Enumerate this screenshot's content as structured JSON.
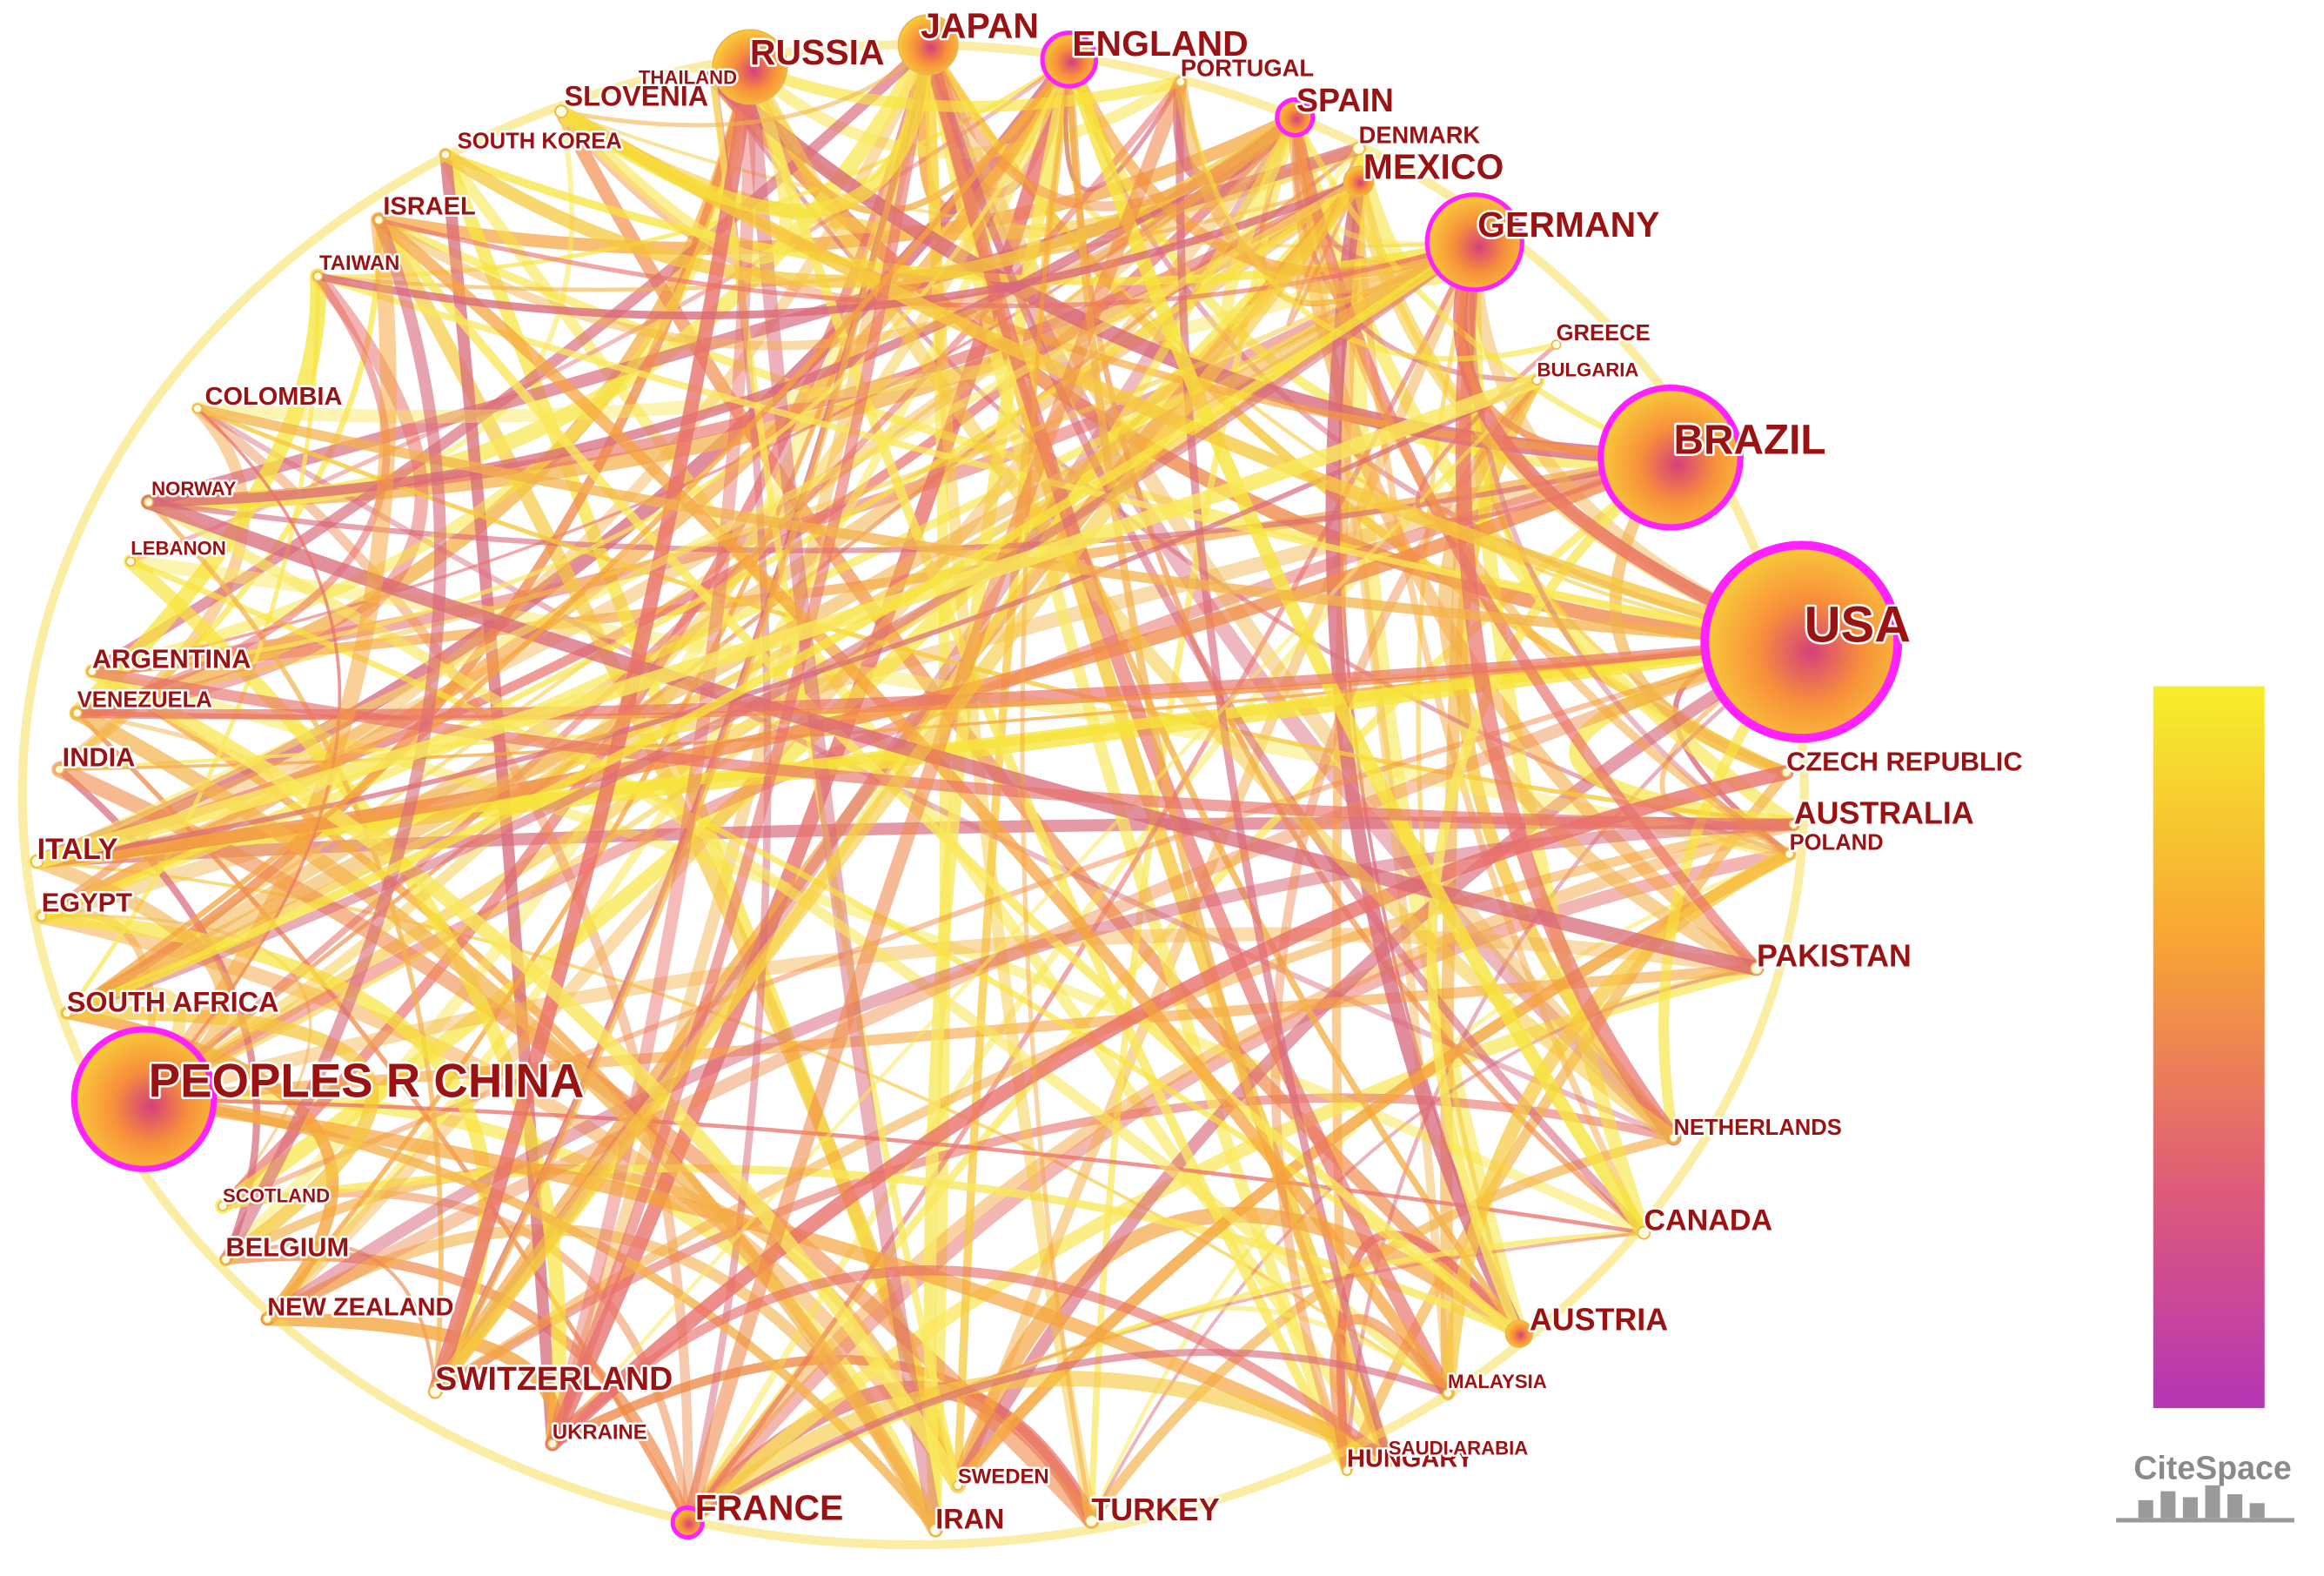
{
  "nodes": [
    {
      "label": "USA"
    },
    {
      "label": "BRAZIL"
    },
    {
      "label": "GERMANY"
    },
    {
      "label": "MEXICO"
    },
    {
      "label": "SPAIN"
    },
    {
      "label": "DENMARK"
    },
    {
      "label": "ENGLAND"
    },
    {
      "label": "PORTUGAL"
    },
    {
      "label": "JAPAN"
    },
    {
      "label": "RUSSIA"
    },
    {
      "label": "THAILAND"
    },
    {
      "label": "SLOVENIA"
    },
    {
      "label": "SOUTH KOREA"
    },
    {
      "label": "ISRAEL"
    },
    {
      "label": "TAIWAN"
    },
    {
      "label": "COLOMBIA"
    },
    {
      "label": "NORWAY"
    },
    {
      "label": "LEBANON"
    },
    {
      "label": "ARGENTINA"
    },
    {
      "label": "VENEZUELA"
    },
    {
      "label": "INDIA"
    },
    {
      "label": "ITALY"
    },
    {
      "label": "EGYPT"
    },
    {
      "label": "SOUTH AFRICA"
    },
    {
      "label": "PEOPLES R CHINA"
    },
    {
      "label": "SCOTLAND"
    },
    {
      "label": "BELGIUM"
    },
    {
      "label": "NEW ZEALAND"
    },
    {
      "label": "SWITZERLAND"
    },
    {
      "label": "UKRAINE"
    },
    {
      "label": "FRANCE"
    },
    {
      "label": "SWEDEN"
    },
    {
      "label": "IRAN"
    },
    {
      "label": "TURKEY"
    },
    {
      "label": "HUNGARY"
    },
    {
      "label": "SAUDI ARABIA"
    },
    {
      "label": "MALAYSIA"
    },
    {
      "label": "AUSTRIA"
    },
    {
      "label": "CANADA"
    },
    {
      "label": "NETHERLANDS"
    },
    {
      "label": "PAKISTAN"
    },
    {
      "label": "POLAND"
    },
    {
      "label": "AUSTRALIA"
    },
    {
      "label": "CZECH REPUBLIC"
    },
    {
      "label": "GREECE"
    },
    {
      "label": "BULGARIA"
    }
  ],
  "logo": "CiteSpace"
}
